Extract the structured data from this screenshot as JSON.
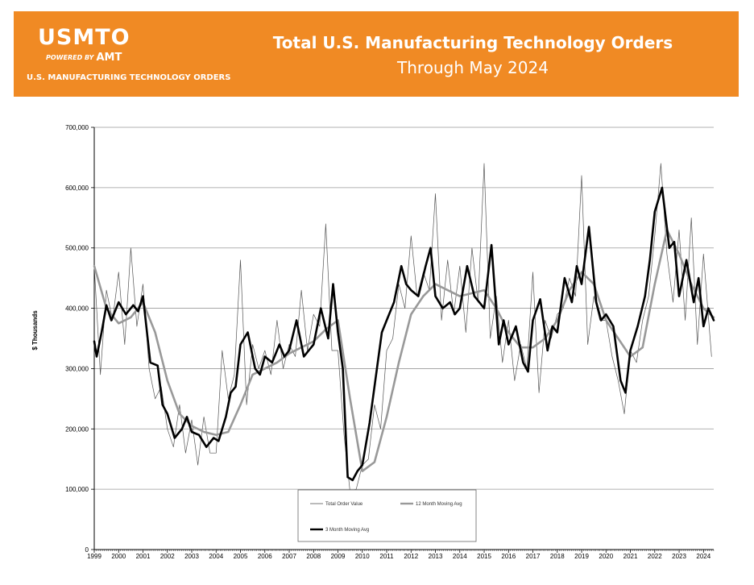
{
  "header": {
    "logo_text": "USMTO",
    "logo_powered": "POWERED BY",
    "logo_brand": "AMT",
    "logo_subtitle": "U.S. MANUFACTURING TECHNOLOGY ORDERS",
    "title": "Total U.S. Manufacturing Technology Orders",
    "subtitle": "Through May 2024"
  },
  "colors": {
    "banner": "#f08a24",
    "total": "#555555",
    "ma12": "#999999",
    "ma3": "#000000"
  },
  "chart_data": {
    "type": "line",
    "title": "Total U.S. Manufacturing Technology Orders",
    "subtitle": "Through May 2024",
    "ylabel": "$ Thousands",
    "xlabel": "",
    "ylim": [
      0,
      700000
    ],
    "yticks": [
      0,
      100000,
      200000,
      300000,
      400000,
      500000,
      600000,
      700000
    ],
    "ytick_labels": [
      "0",
      "100,000",
      "200,000",
      "300,000",
      "400,000",
      "500,000",
      "600,000",
      "700,000"
    ],
    "xlim": [
      1999,
      2024.42
    ],
    "x_tick_labels": [
      "1999",
      "2000",
      "2001",
      "2002",
      "2003",
      "2004",
      "2005",
      "2006",
      "2007",
      "2008",
      "2009",
      "2010",
      "2011",
      "2012",
      "2013",
      "2014",
      "2015",
      "2016",
      "2017",
      "2018",
      "2019",
      "2020",
      "2021",
      "2022",
      "2023",
      "2024"
    ],
    "grid": "horizontal",
    "legend_position": "bottom-center",
    "series": [
      {
        "name": "Total Order Value",
        "x": [
          1999.0,
          1999.25,
          1999.5,
          1999.75,
          2000.0,
          2000.25,
          2000.5,
          2000.75,
          2001.0,
          2001.25,
          2001.5,
          2001.75,
          2002.0,
          2002.25,
          2002.5,
          2002.75,
          2003.0,
          2003.25,
          2003.5,
          2003.75,
          2004.0,
          2004.25,
          2004.5,
          2004.75,
          2005.0,
          2005.25,
          2005.5,
          2005.75,
          2006.0,
          2006.25,
          2006.5,
          2006.75,
          2007.0,
          2007.25,
          2007.5,
          2007.75,
          2008.0,
          2008.25,
          2008.5,
          2008.75,
          2009.0,
          2009.25,
          2009.5,
          2009.75,
          2010.0,
          2010.25,
          2010.5,
          2010.75,
          2011.0,
          2011.25,
          2011.5,
          2011.75,
          2012.0,
          2012.25,
          2012.5,
          2012.75,
          2013.0,
          2013.25,
          2013.5,
          2013.75,
          2014.0,
          2014.25,
          2014.5,
          2014.75,
          2015.0,
          2015.25,
          2015.5,
          2015.75,
          2016.0,
          2016.25,
          2016.5,
          2016.75,
          2017.0,
          2017.25,
          2017.5,
          2017.75,
          2018.0,
          2018.25,
          2018.5,
          2018.75,
          2019.0,
          2019.25,
          2019.5,
          2019.75,
          2020.0,
          2020.25,
          2020.5,
          2020.75,
          2021.0,
          2021.25,
          2021.5,
          2021.75,
          2022.0,
          2022.25,
          2022.5,
          2022.75,
          2023.0,
          2023.25,
          2023.5,
          2023.75,
          2024.0,
          2024.33
        ],
        "y": [
          470000,
          290000,
          430000,
          380000,
          460000,
          340000,
          500000,
          370000,
          440000,
          300000,
          250000,
          270000,
          200000,
          170000,
          240000,
          160000,
          215000,
          140000,
          220000,
          160000,
          160000,
          330000,
          250000,
          290000,
          480000,
          240000,
          340000,
          300000,
          330000,
          290000,
          380000,
          300000,
          340000,
          320000,
          430000,
          330000,
          390000,
          370000,
          540000,
          330000,
          330000,
          190000,
          95000,
          100000,
          140000,
          150000,
          240000,
          200000,
          330000,
          350000,
          440000,
          400000,
          520000,
          420000,
          460000,
          430000,
          590000,
          380000,
          480000,
          390000,
          470000,
          360000,
          500000,
          410000,
          640000,
          350000,
          420000,
          310000,
          380000,
          280000,
          340000,
          300000,
          460000,
          260000,
          380000,
          350000,
          390000,
          400000,
          450000,
          420000,
          620000,
          340000,
          420000,
          380000,
          380000,
          320000,
          280000,
          225000,
          330000,
          310000,
          380000,
          420000,
          520000,
          640000,
          490000,
          410000,
          530000,
          380000,
          550000,
          340000,
          490000,
          320000
        ]
      },
      {
        "name": "12 Month Moving Avg",
        "x": [
          1999.0,
          1999.5,
          2000.0,
          2000.5,
          2001.0,
          2001.5,
          2002.0,
          2002.5,
          2003.0,
          2003.5,
          2004.0,
          2004.5,
          2005.0,
          2005.5,
          2006.0,
          2006.5,
          2007.0,
          2007.5,
          2008.0,
          2008.5,
          2009.0,
          2009.5,
          2010.0,
          2010.5,
          2011.0,
          2011.5,
          2012.0,
          2012.5,
          2013.0,
          2013.5,
          2014.0,
          2014.5,
          2015.0,
          2015.5,
          2016.0,
          2016.5,
          2017.0,
          2017.5,
          2018.0,
          2018.5,
          2019.0,
          2019.5,
          2020.0,
          2020.5,
          2021.0,
          2021.5,
          2022.0,
          2022.5,
          2023.0,
          2023.5,
          2024.0,
          2024.42
        ],
        "y": [
          470000,
          400000,
          375000,
          385000,
          410000,
          360000,
          280000,
          225000,
          205000,
          195000,
          190000,
          195000,
          240000,
          290000,
          300000,
          310000,
          325000,
          335000,
          345000,
          365000,
          380000,
          250000,
          130000,
          145000,
          220000,
          310000,
          390000,
          420000,
          440000,
          430000,
          420000,
          425000,
          430000,
          400000,
          360000,
          335000,
          335000,
          350000,
          380000,
          430000,
          460000,
          440000,
          380000,
          350000,
          320000,
          335000,
          440000,
          530000,
          490000,
          440000,
          400000,
          385000
        ]
      },
      {
        "name": "3 Month Moving Avg",
        "x": [
          1999.0,
          1999.1,
          1999.3,
          1999.5,
          1999.7,
          2000.0,
          2000.3,
          2000.6,
          2000.8,
          2001.0,
          2001.3,
          2001.6,
          2001.8,
          2002.0,
          2002.3,
          2002.6,
          2002.8,
          2003.0,
          2003.3,
          2003.6,
          2003.9,
          2004.1,
          2004.4,
          2004.6,
          2004.8,
          2005.0,
          2005.3,
          2005.6,
          2005.8,
          2006.0,
          2006.3,
          2006.6,
          2006.8,
          2007.0,
          2007.3,
          2007.6,
          2007.8,
          2008.0,
          2008.3,
          2008.6,
          2008.8,
          2009.0,
          2009.2,
          2009.4,
          2009.6,
          2009.8,
          2010.0,
          2010.3,
          2010.6,
          2010.8,
          2011.0,
          2011.3,
          2011.6,
          2011.8,
          2012.0,
          2012.3,
          2012.6,
          2012.8,
          2013.0,
          2013.3,
          2013.6,
          2013.8,
          2014.0,
          2014.3,
          2014.6,
          2014.8,
          2015.0,
          2015.3,
          2015.6,
          2015.8,
          2016.0,
          2016.3,
          2016.6,
          2016.8,
          2017.0,
          2017.3,
          2017.6,
          2017.8,
          2018.0,
          2018.3,
          2018.6,
          2018.8,
          2019.0,
          2019.3,
          2019.6,
          2019.8,
          2020.0,
          2020.3,
          2020.6,
          2020.8,
          2021.0,
          2021.3,
          2021.6,
          2021.8,
          2022.0,
          2022.3,
          2022.6,
          2022.8,
          2023.0,
          2023.3,
          2023.6,
          2023.8,
          2024.0,
          2024.2,
          2024.42
        ],
        "y": [
          345000,
          320000,
          360000,
          405000,
          380000,
          410000,
          390000,
          405000,
          395000,
          420000,
          310000,
          305000,
          240000,
          225000,
          185000,
          200000,
          220000,
          195000,
          190000,
          170000,
          185000,
          180000,
          220000,
          260000,
          270000,
          340000,
          360000,
          300000,
          290000,
          320000,
          310000,
          340000,
          320000,
          330000,
          380000,
          320000,
          330000,
          340000,
          400000,
          350000,
          440000,
          360000,
          300000,
          120000,
          115000,
          130000,
          140000,
          210000,
          300000,
          360000,
          380000,
          410000,
          470000,
          440000,
          430000,
          420000,
          470000,
          500000,
          420000,
          400000,
          410000,
          390000,
          400000,
          470000,
          420000,
          410000,
          400000,
          505000,
          340000,
          380000,
          340000,
          370000,
          310000,
          295000,
          380000,
          415000,
          330000,
          370000,
          360000,
          450000,
          410000,
          470000,
          440000,
          535000,
          410000,
          380000,
          390000,
          370000,
          280000,
          260000,
          330000,
          370000,
          420000,
          480000,
          560000,
          600000,
          500000,
          510000,
          420000,
          480000,
          410000,
          450000,
          370000,
          400000,
          380000
        ]
      }
    ]
  }
}
